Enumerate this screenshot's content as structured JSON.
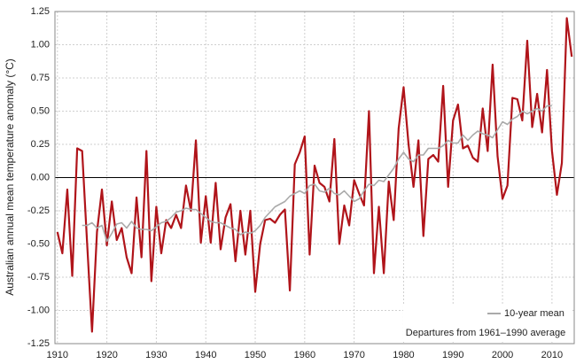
{
  "chart_data": {
    "type": "line",
    "y_label": "Australian annual mean temperature anomaly (°C)",
    "annotation": "Departures from 1961–1990 average",
    "x": [
      1910,
      1911,
      1912,
      1913,
      1914,
      1915,
      1916,
      1917,
      1918,
      1919,
      1920,
      1921,
      1922,
      1923,
      1924,
      1925,
      1926,
      1927,
      1928,
      1929,
      1930,
      1931,
      1932,
      1933,
      1934,
      1935,
      1936,
      1937,
      1938,
      1939,
      1940,
      1941,
      1942,
      1943,
      1944,
      1945,
      1946,
      1947,
      1948,
      1949,
      1950,
      1951,
      1952,
      1953,
      1954,
      1955,
      1956,
      1957,
      1958,
      1959,
      1960,
      1961,
      1962,
      1963,
      1964,
      1965,
      1966,
      1967,
      1968,
      1969,
      1970,
      1971,
      1972,
      1973,
      1974,
      1975,
      1976,
      1977,
      1978,
      1979,
      1980,
      1981,
      1982,
      1983,
      1984,
      1985,
      1986,
      1987,
      1988,
      1989,
      1990,
      1991,
      1992,
      1993,
      1994,
      1995,
      1996,
      1997,
      1998,
      1999,
      2000,
      2001,
      2002,
      2003,
      2004,
      2005,
      2006,
      2007,
      2008,
      2009,
      2010,
      2011,
      2012,
      2013,
      2014
    ],
    "series": [
      {
        "color": "#b0141a",
        "values": [
          -0.41,
          -0.57,
          -0.09,
          -0.74,
          0.22,
          0.2,
          -0.49,
          -1.16,
          -0.41,
          -0.09,
          -0.51,
          -0.18,
          -0.47,
          -0.38,
          -0.6,
          -0.72,
          -0.15,
          -0.6,
          0.2,
          -0.78,
          -0.22,
          -0.57,
          -0.32,
          -0.38,
          -0.28,
          -0.38,
          -0.06,
          -0.25,
          0.28,
          -0.49,
          -0.14,
          -0.49,
          -0.04,
          -0.54,
          -0.3,
          -0.2,
          -0.63,
          -0.25,
          -0.58,
          -0.25,
          -0.86,
          -0.5,
          -0.32,
          -0.31,
          -0.34,
          -0.28,
          -0.24,
          -0.85,
          0.1,
          0.19,
          0.31,
          -0.58,
          0.09,
          -0.04,
          -0.07,
          -0.18,
          0.29,
          -0.5,
          -0.21,
          -0.36,
          -0.02,
          -0.12,
          -0.21,
          0.5,
          -0.72,
          -0.22,
          -0.72,
          -0.03,
          -0.32,
          0.37,
          0.68,
          0.25,
          -0.07,
          0.28,
          -0.44,
          0.14,
          0.17,
          0.12,
          0.69,
          -0.07,
          0.43,
          0.55,
          0.22,
          0.24,
          0.15,
          0.12,
          0.52,
          0.2,
          0.85,
          0.16,
          -0.16,
          -0.06,
          0.6,
          0.59,
          0.43,
          1.03,
          0.38,
          0.63,
          0.34,
          0.81,
          0.2,
          -0.13,
          0.11,
          1.2,
          0.91
        ]
      },
      {
        "name": "10-year mean",
        "color": "#aaaaaa",
        "values": [
          null,
          null,
          null,
          null,
          null,
          -0.36,
          -0.36,
          -0.34,
          -0.38,
          -0.36,
          -0.48,
          -0.42,
          -0.35,
          -0.34,
          -0.38,
          -0.33,
          -0.38,
          -0.39,
          -0.39,
          -0.4,
          -0.37,
          -0.34,
          -0.33,
          -0.3,
          -0.26,
          -0.25,
          -0.23,
          -0.24,
          -0.24,
          -0.27,
          -0.3,
          -0.33,
          -0.34,
          -0.34,
          -0.36,
          -0.38,
          -0.39,
          -0.43,
          -0.41,
          -0.42,
          -0.4,
          -0.36,
          -0.3,
          -0.26,
          -0.22,
          -0.2,
          -0.18,
          -0.14,
          -0.12,
          -0.1,
          -0.12,
          -0.06,
          -0.05,
          -0.1,
          -0.11,
          -0.08,
          -0.12,
          -0.13,
          -0.1,
          -0.14,
          -0.18,
          -0.16,
          -0.1,
          -0.05,
          -0.06,
          -0.02,
          -0.03,
          0.02,
          0.07,
          0.14,
          0.19,
          0.14,
          0.12,
          0.17,
          0.17,
          0.22,
          0.22,
          0.22,
          0.24,
          0.28,
          0.26,
          0.26,
          0.32,
          0.28,
          0.32,
          0.35,
          0.33,
          0.32,
          0.3,
          0.36,
          0.42,
          0.4,
          0.44,
          0.46,
          0.5,
          0.48,
          0.5,
          0.52,
          0.5,
          0.54,
          0.54,
          null,
          null,
          null,
          null
        ]
      }
    ],
    "xlim": [
      1909.5,
      2014.5
    ],
    "xticks": [
      1910,
      1920,
      1930,
      1940,
      1950,
      1960,
      1970,
      1980,
      1990,
      2000,
      2010
    ],
    "ylim": [
      -1.25,
      1.25
    ],
    "yticks": [
      -1.25,
      -0.75,
      {
        "value": -1,
        "label": "-1.00"
      },
      {
        "value": -0.5,
        "label": "-0.50"
      },
      -0.25,
      {
        "value": 0,
        "label": "0.00"
      },
      0.25,
      {
        "value": 0.5,
        "label": "0.50"
      },
      0.75,
      {
        "value": 1,
        "label": "1.00"
      },
      1.25
    ],
    "grid": true
  }
}
